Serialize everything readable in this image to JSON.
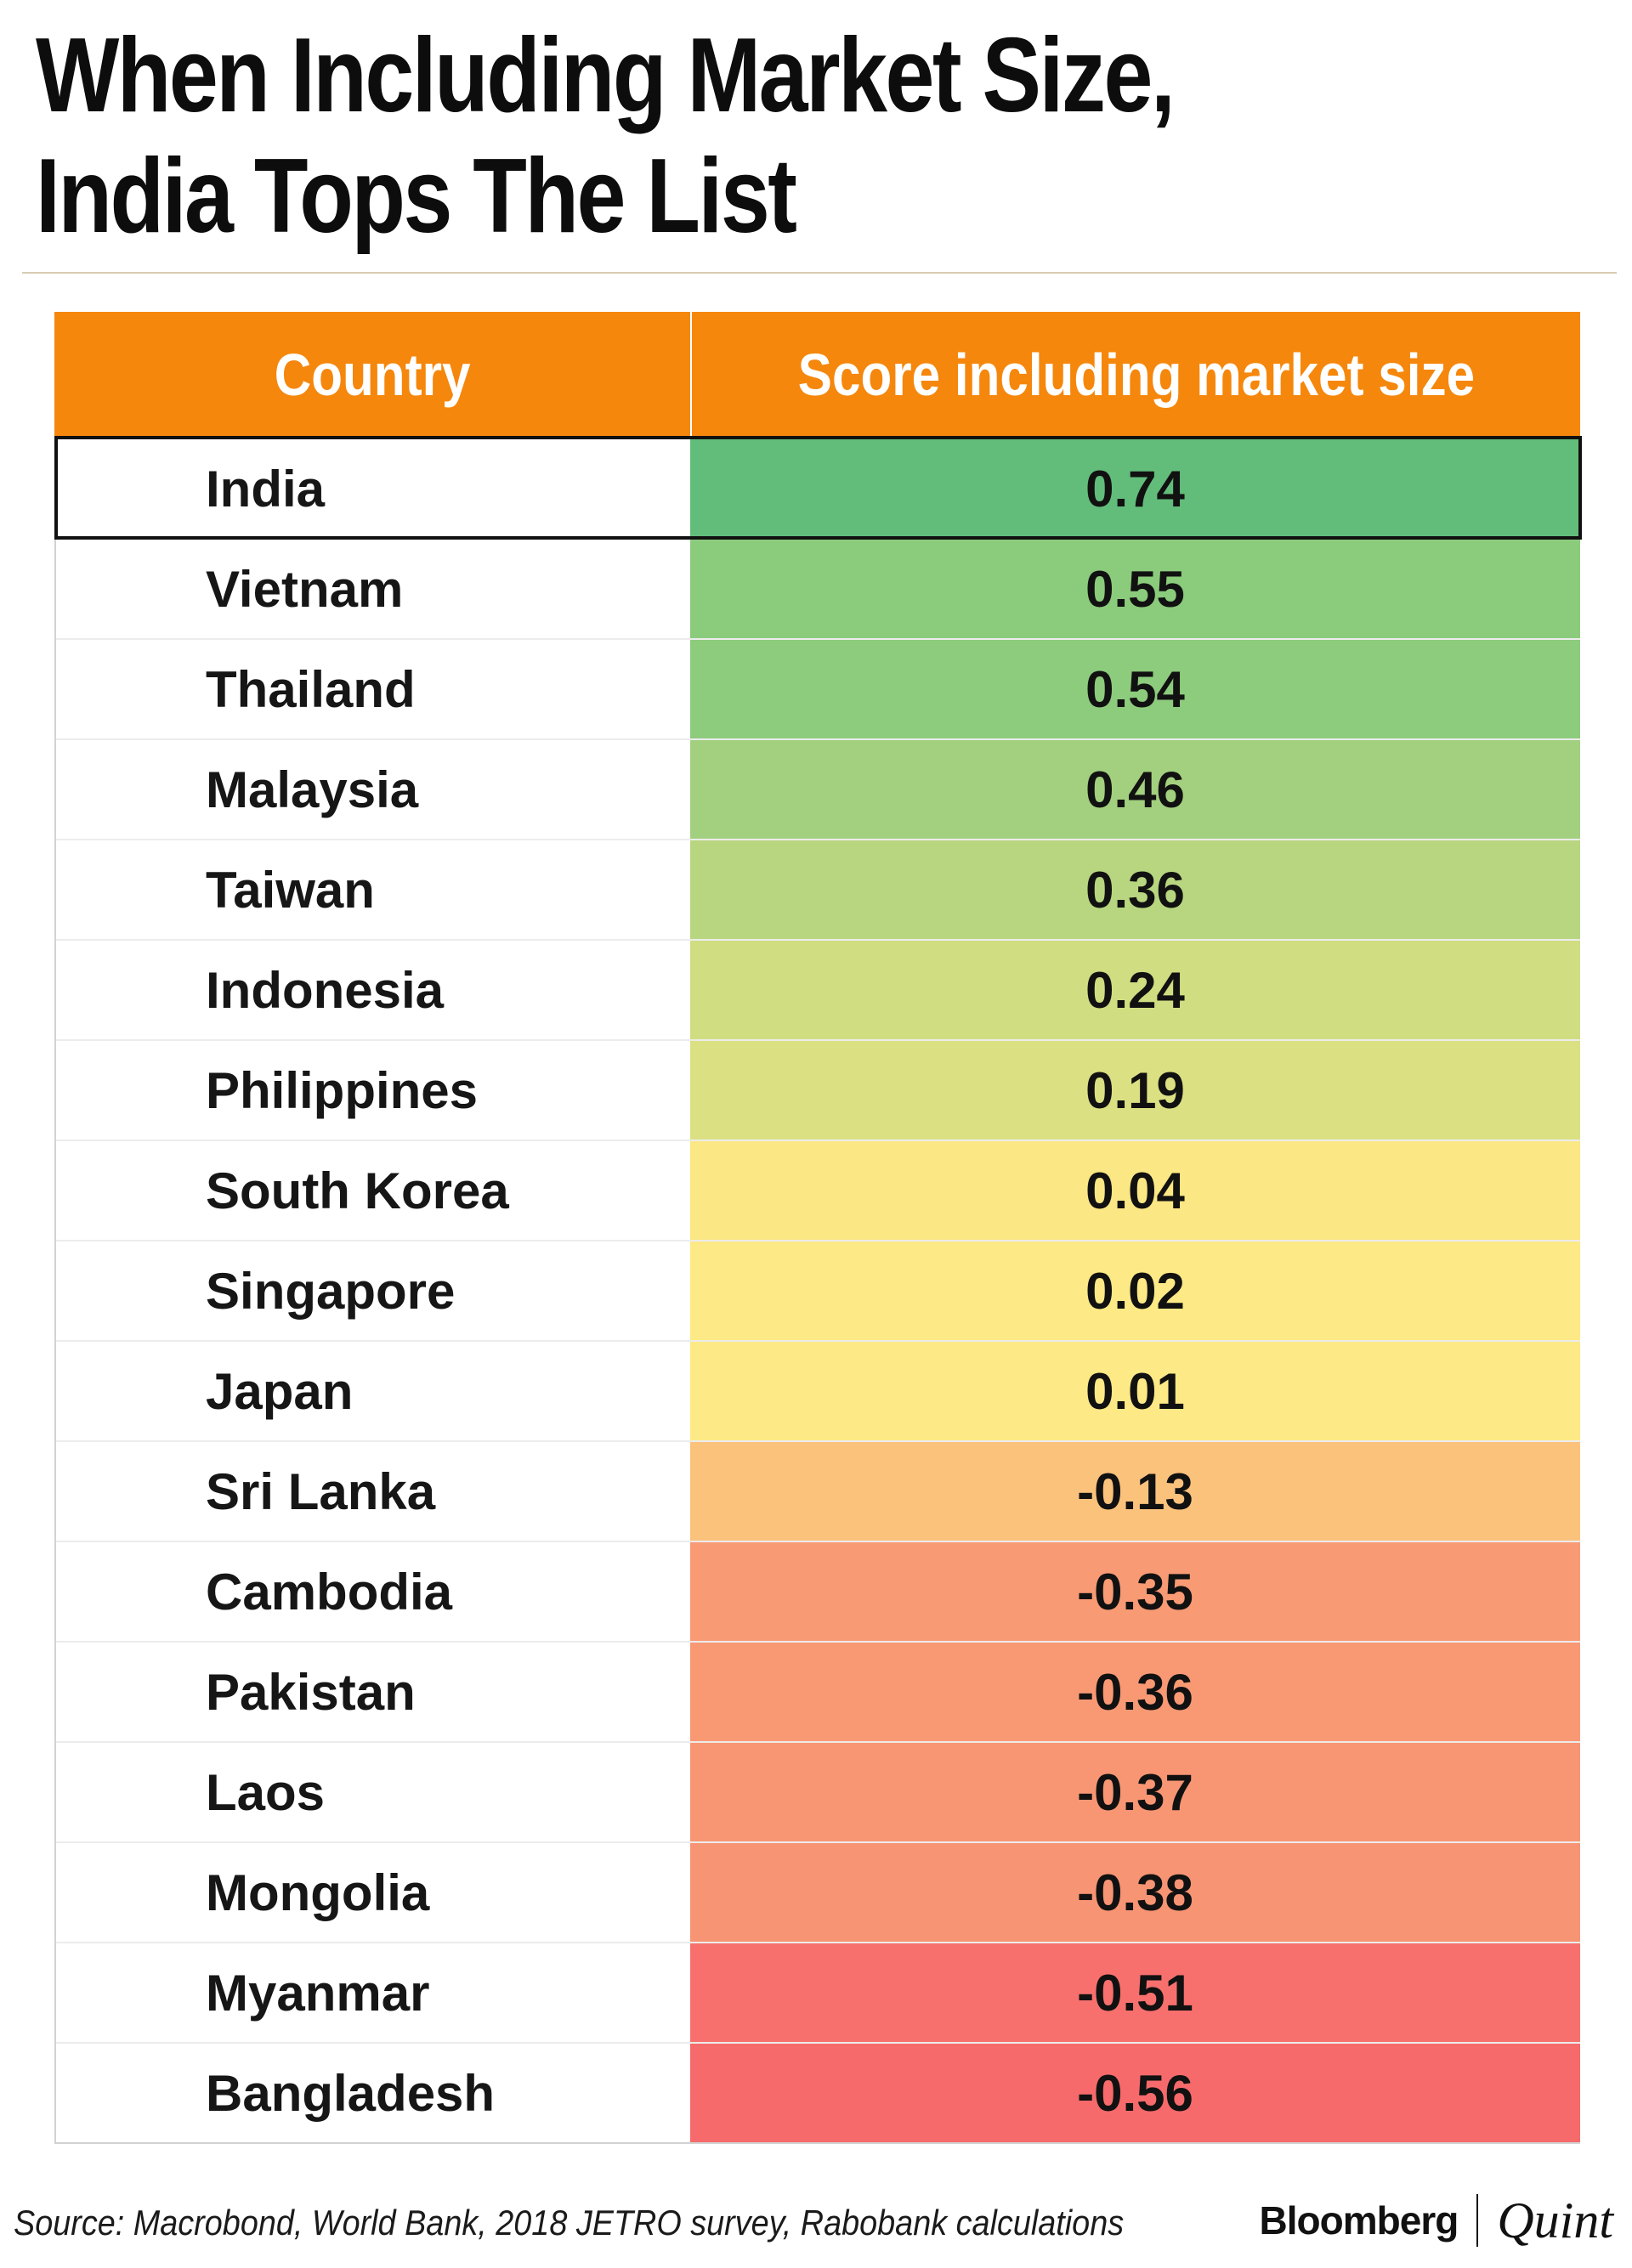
{
  "title_line1": "When Including Market Size,",
  "title_line2": "India Tops The List",
  "chart_data": {
    "type": "table",
    "columns": [
      "Country",
      "Score including market size"
    ],
    "rows": [
      {
        "country": "India",
        "score": "0.74",
        "color": "#62bd7b",
        "highlight": true
      },
      {
        "country": "Vietnam",
        "score": "0.55",
        "color": "#8bcb7c",
        "highlight": false
      },
      {
        "country": "Thailand",
        "score": "0.54",
        "color": "#8dcb7d",
        "highlight": false
      },
      {
        "country": "Malaysia",
        "score": "0.46",
        "color": "#a2d07e",
        "highlight": false
      },
      {
        "country": "Taiwan",
        "score": "0.36",
        "color": "#b8d67f",
        "highlight": false
      },
      {
        "country": "Indonesia",
        "score": "0.24",
        "color": "#d0dd81",
        "highlight": false
      },
      {
        "country": "Philippines",
        "score": "0.19",
        "color": "#dbe082",
        "highlight": false
      },
      {
        "country": "South Korea",
        "score": "0.04",
        "color": "#fbe784",
        "highlight": false
      },
      {
        "country": "Singapore",
        "score": "0.02",
        "color": "#fde985",
        "highlight": false
      },
      {
        "country": "Japan",
        "score": "0.01",
        "color": "#fde985",
        "highlight": false
      },
      {
        "country": "Sri Lanka",
        "score": "-0.13",
        "color": "#fbc27c",
        "highlight": false
      },
      {
        "country": "Cambodia",
        "score": "-0.35",
        "color": "#f89a74",
        "highlight": false
      },
      {
        "country": "Pakistan",
        "score": "-0.36",
        "color": "#f89974",
        "highlight": false
      },
      {
        "country": "Laos",
        "score": "-0.37",
        "color": "#f89673",
        "highlight": false
      },
      {
        "country": "Mongolia",
        "score": "-0.38",
        "color": "#f79473",
        "highlight": false
      },
      {
        "country": "Myanmar",
        "score": "-0.51",
        "color": "#f7706d",
        "highlight": false
      },
      {
        "country": "Bangladesh",
        "score": "-0.56",
        "color": "#f66a6b",
        "highlight": false
      }
    ]
  },
  "footer": {
    "source": "Source: Macrobond, World Bank, 2018 JETRO survey, Rabobank calculations",
    "brand_left": "Bloomberg",
    "brand_right": "Quint"
  }
}
